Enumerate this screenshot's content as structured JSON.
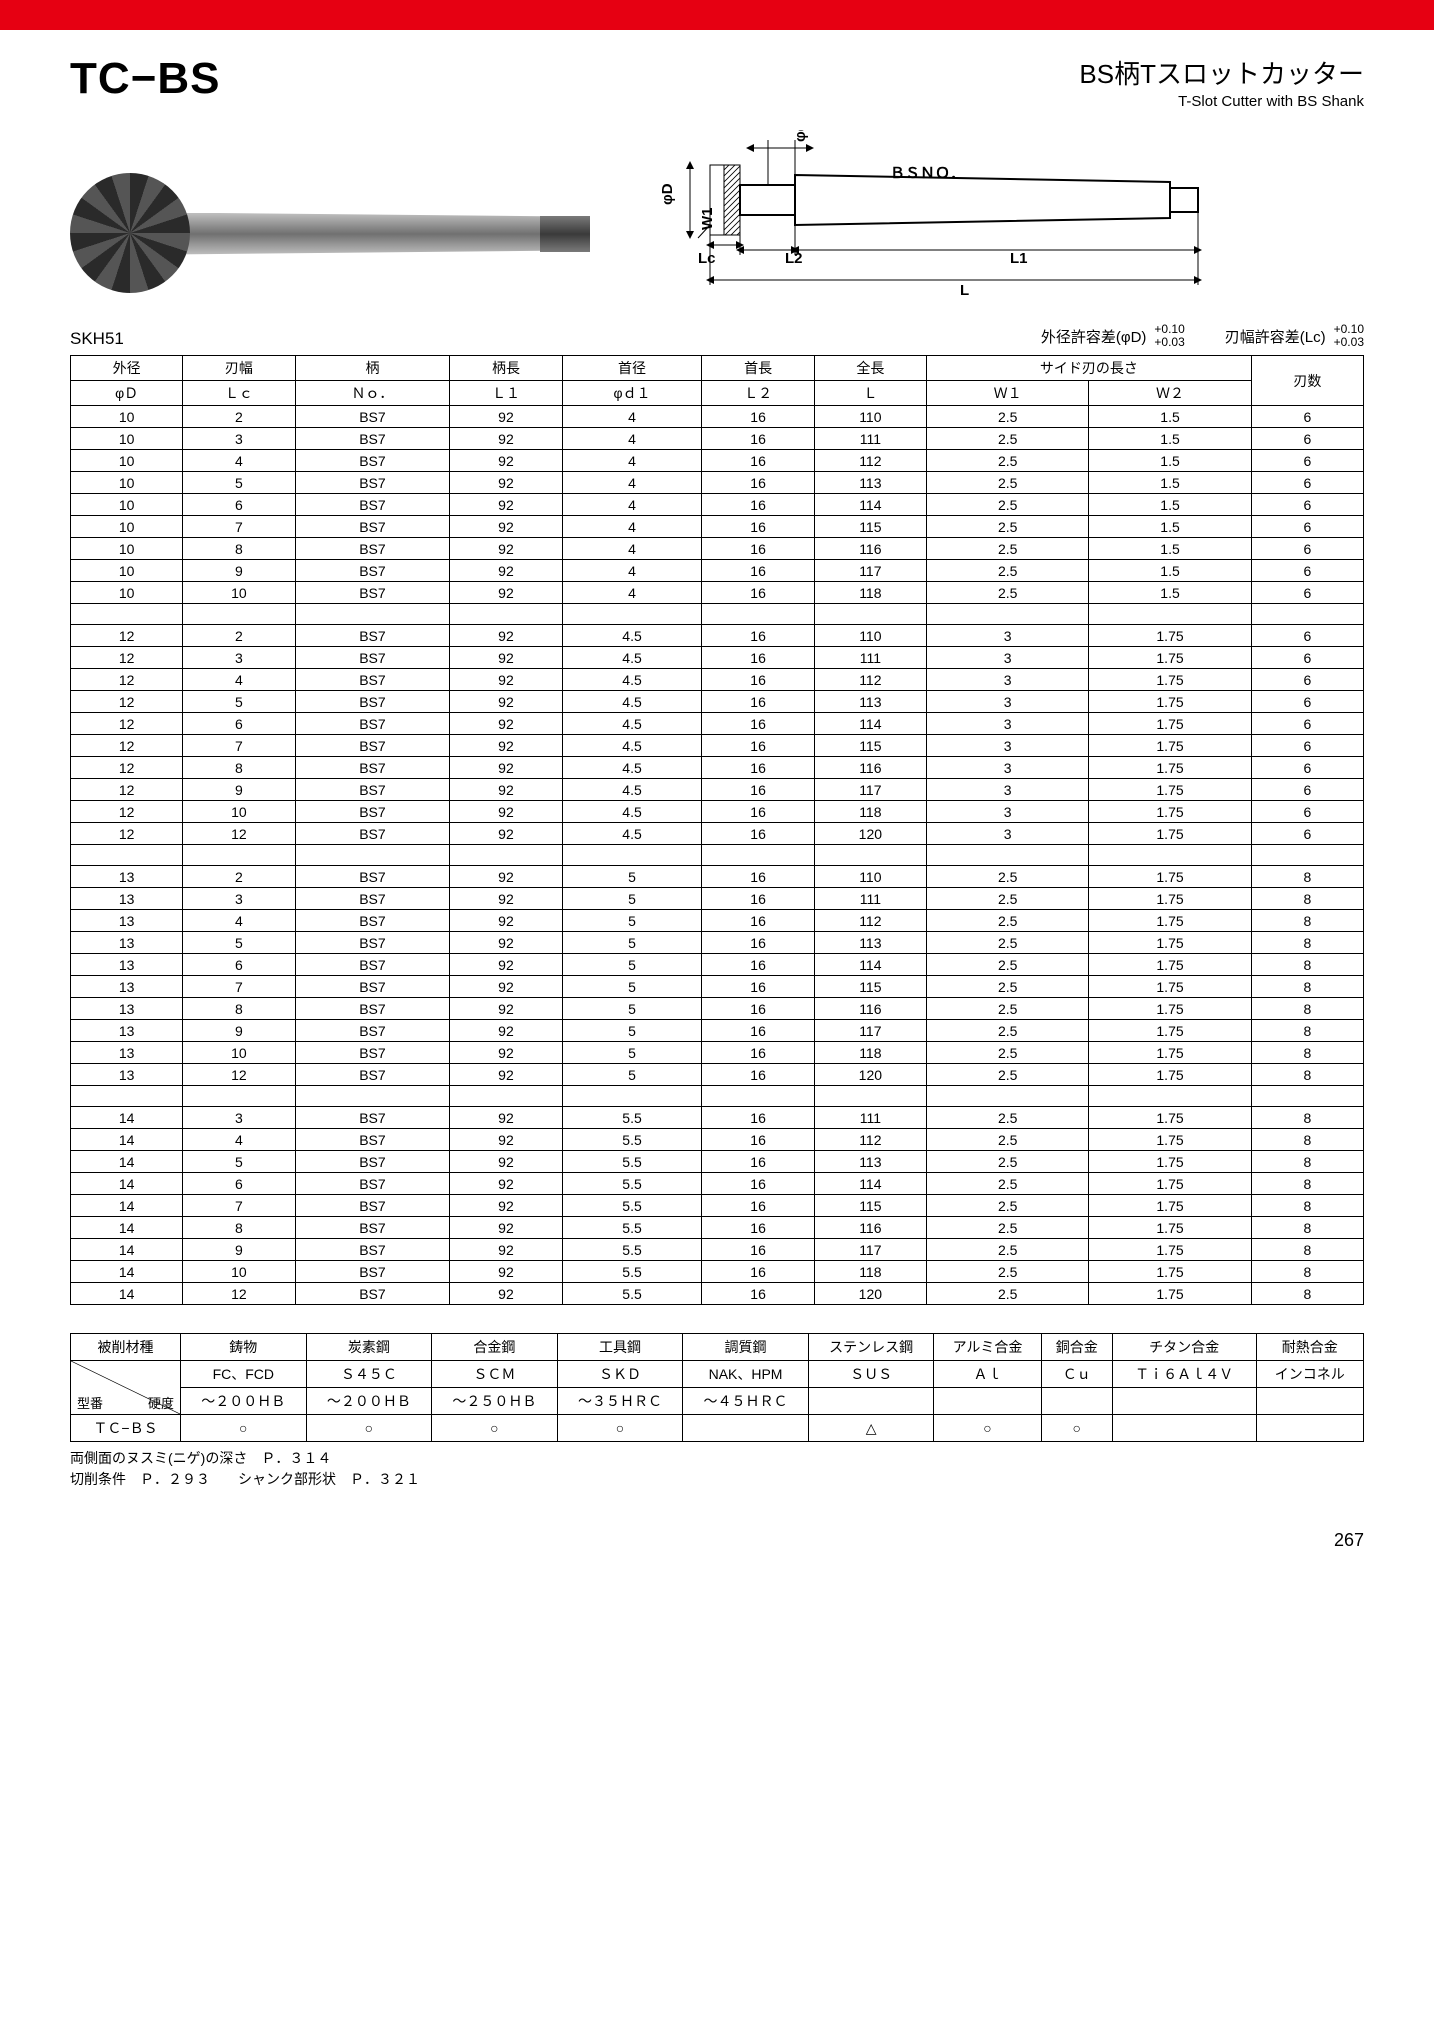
{
  "header": {
    "product_code": "TC−BS",
    "title_jp": "BS柄Tスロットカッター",
    "title_en": "T-Slot Cutter with BS Shank"
  },
  "diagram_labels": {
    "phi_d1": "φd1",
    "phi_D": "φD",
    "bs_no": "ＢＳＮＯ．",
    "Lc": "Lc",
    "L2": "L2",
    "L1": "L1",
    "L": "L",
    "W1": "W1"
  },
  "tolerances": {
    "material": "SKH51",
    "d_label": "外径許容差(φD)",
    "d_upper": "+0.10",
    "d_lower": "+0.03",
    "lc_label": "刃幅許容差(Lc)",
    "lc_upper": "+0.10",
    "lc_lower": "+0.03"
  },
  "spec_table": {
    "header1": [
      "外径",
      "刃幅",
      "柄",
      "柄長",
      "首径",
      "首長",
      "全長",
      "サイド刃の長さ",
      "刃数"
    ],
    "header2": [
      "φＤ",
      "Ｌｃ",
      "Ｎｏ．",
      "Ｌ１",
      "φｄ１",
      "Ｌ２",
      "Ｌ",
      "Ｗ１",
      "Ｗ２"
    ],
    "groups": [
      [
        [
          "10",
          "2",
          "BS7",
          "92",
          "4",
          "16",
          "110",
          "2.5",
          "1.5",
          "6"
        ],
        [
          "10",
          "3",
          "BS7",
          "92",
          "4",
          "16",
          "111",
          "2.5",
          "1.5",
          "6"
        ],
        [
          "10",
          "4",
          "BS7",
          "92",
          "4",
          "16",
          "112",
          "2.5",
          "1.5",
          "6"
        ],
        [
          "10",
          "5",
          "BS7",
          "92",
          "4",
          "16",
          "113",
          "2.5",
          "1.5",
          "6"
        ],
        [
          "10",
          "6",
          "BS7",
          "92",
          "4",
          "16",
          "114",
          "2.5",
          "1.5",
          "6"
        ],
        [
          "10",
          "7",
          "BS7",
          "92",
          "4",
          "16",
          "115",
          "2.5",
          "1.5",
          "6"
        ],
        [
          "10",
          "8",
          "BS7",
          "92",
          "4",
          "16",
          "116",
          "2.5",
          "1.5",
          "6"
        ],
        [
          "10",
          "9",
          "BS7",
          "92",
          "4",
          "16",
          "117",
          "2.5",
          "1.5",
          "6"
        ],
        [
          "10",
          "10",
          "BS7",
          "92",
          "4",
          "16",
          "118",
          "2.5",
          "1.5",
          "6"
        ]
      ],
      [
        [
          "12",
          "2",
          "BS7",
          "92",
          "4.5",
          "16",
          "110",
          "3",
          "1.75",
          "6"
        ],
        [
          "12",
          "3",
          "BS7",
          "92",
          "4.5",
          "16",
          "111",
          "3",
          "1.75",
          "6"
        ],
        [
          "12",
          "4",
          "BS7",
          "92",
          "4.5",
          "16",
          "112",
          "3",
          "1.75",
          "6"
        ],
        [
          "12",
          "5",
          "BS7",
          "92",
          "4.5",
          "16",
          "113",
          "3",
          "1.75",
          "6"
        ],
        [
          "12",
          "6",
          "BS7",
          "92",
          "4.5",
          "16",
          "114",
          "3",
          "1.75",
          "6"
        ],
        [
          "12",
          "7",
          "BS7",
          "92",
          "4.5",
          "16",
          "115",
          "3",
          "1.75",
          "6"
        ],
        [
          "12",
          "8",
          "BS7",
          "92",
          "4.5",
          "16",
          "116",
          "3",
          "1.75",
          "6"
        ],
        [
          "12",
          "9",
          "BS7",
          "92",
          "4.5",
          "16",
          "117",
          "3",
          "1.75",
          "6"
        ],
        [
          "12",
          "10",
          "BS7",
          "92",
          "4.5",
          "16",
          "118",
          "3",
          "1.75",
          "6"
        ],
        [
          "12",
          "12",
          "BS7",
          "92",
          "4.5",
          "16",
          "120",
          "3",
          "1.75",
          "6"
        ]
      ],
      [
        [
          "13",
          "2",
          "BS7",
          "92",
          "5",
          "16",
          "110",
          "2.5",
          "1.75",
          "8"
        ],
        [
          "13",
          "3",
          "BS7",
          "92",
          "5",
          "16",
          "111",
          "2.5",
          "1.75",
          "8"
        ],
        [
          "13",
          "4",
          "BS7",
          "92",
          "5",
          "16",
          "112",
          "2.5",
          "1.75",
          "8"
        ],
        [
          "13",
          "5",
          "BS7",
          "92",
          "5",
          "16",
          "113",
          "2.5",
          "1.75",
          "8"
        ],
        [
          "13",
          "6",
          "BS7",
          "92",
          "5",
          "16",
          "114",
          "2.5",
          "1.75",
          "8"
        ],
        [
          "13",
          "7",
          "BS7",
          "92",
          "5",
          "16",
          "115",
          "2.5",
          "1.75",
          "8"
        ],
        [
          "13",
          "8",
          "BS7",
          "92",
          "5",
          "16",
          "116",
          "2.5",
          "1.75",
          "8"
        ],
        [
          "13",
          "9",
          "BS7",
          "92",
          "5",
          "16",
          "117",
          "2.5",
          "1.75",
          "8"
        ],
        [
          "13",
          "10",
          "BS7",
          "92",
          "5",
          "16",
          "118",
          "2.5",
          "1.75",
          "8"
        ],
        [
          "13",
          "12",
          "BS7",
          "92",
          "5",
          "16",
          "120",
          "2.5",
          "1.75",
          "8"
        ]
      ],
      [
        [
          "14",
          "3",
          "BS7",
          "92",
          "5.5",
          "16",
          "111",
          "2.5",
          "1.75",
          "8"
        ],
        [
          "14",
          "4",
          "BS7",
          "92",
          "5.5",
          "16",
          "112",
          "2.5",
          "1.75",
          "8"
        ],
        [
          "14",
          "5",
          "BS7",
          "92",
          "5.5",
          "16",
          "113",
          "2.5",
          "1.75",
          "8"
        ],
        [
          "14",
          "6",
          "BS7",
          "92",
          "5.5",
          "16",
          "114",
          "2.5",
          "1.75",
          "8"
        ],
        [
          "14",
          "7",
          "BS7",
          "92",
          "5.5",
          "16",
          "115",
          "2.5",
          "1.75",
          "8"
        ],
        [
          "14",
          "8",
          "BS7",
          "92",
          "5.5",
          "16",
          "116",
          "2.5",
          "1.75",
          "8"
        ],
        [
          "14",
          "9",
          "BS7",
          "92",
          "5.5",
          "16",
          "117",
          "2.5",
          "1.75",
          "8"
        ],
        [
          "14",
          "10",
          "BS7",
          "92",
          "5.5",
          "16",
          "118",
          "2.5",
          "1.75",
          "8"
        ],
        [
          "14",
          "12",
          "BS7",
          "92",
          "5.5",
          "16",
          "120",
          "2.5",
          "1.75",
          "8"
        ]
      ]
    ]
  },
  "material_table": {
    "corner_top": "被削材種",
    "corner_mid_right": "硬度",
    "corner_mid_left": "型番",
    "cols1": [
      "鋳物",
      "炭素鋼",
      "合金鋼",
      "工具鋼",
      "調質鋼",
      "ステンレス鋼",
      "アルミ合金",
      "銅合金",
      "チタン合金",
      "耐熱合金"
    ],
    "cols2": [
      "FC、FCD",
      "Ｓ４５Ｃ",
      "ＳＣＭ",
      "ＳＫＤ",
      "NAK、HPM",
      "ＳＵＳ",
      "Ａｌ",
      "Ｃｕ",
      "Ｔｉ６Ａｌ４Ｖ",
      "インコネル"
    ],
    "hardness": [
      "～２００ＨＢ",
      "～２００ＨＢ",
      "～２５０ＨＢ",
      "～３５ＨＲＣ",
      "～４５ＨＲＣ",
      "",
      "",
      "",
      "",
      ""
    ],
    "row_label": "ＴＣ−ＢＳ",
    "marks": [
      "○",
      "○",
      "○",
      "○",
      "",
      "△",
      "○",
      "○",
      "",
      ""
    ]
  },
  "notes": {
    "line1": "両側面のヌスミ(ニゲ)の深さ　Ｐ．３１４",
    "line2": "切削条件　Ｐ．２９３　　シャンク部形状　Ｐ．３２１"
  },
  "page_number": "267",
  "colors": {
    "red": "#e60012",
    "border": "#000000",
    "bg": "#ffffff"
  }
}
